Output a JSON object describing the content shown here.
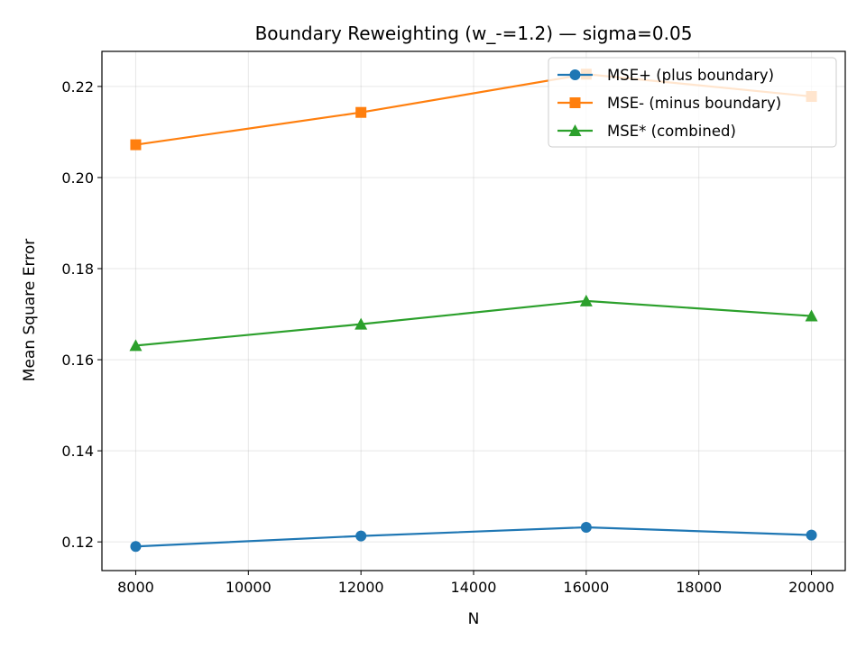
{
  "chart_data": {
    "type": "line",
    "title": "Boundary Reweighting (w_-=1.2) — sigma=0.05",
    "xlabel": "N",
    "ylabel": "Mean Square Error",
    "x": [
      8000,
      12000,
      16000,
      20000
    ],
    "xlim": [
      7400,
      20600
    ],
    "ylim": [
      0.1137,
      0.2277
    ],
    "xticks": [
      8000,
      10000,
      12000,
      14000,
      16000,
      18000,
      20000
    ],
    "xtick_labels": [
      "8000",
      "10000",
      "12000",
      "14000",
      "16000",
      "18000",
      "20000"
    ],
    "yticks": [
      0.12,
      0.14,
      0.16,
      0.18,
      0.2,
      0.22
    ],
    "ytick_labels": [
      "0.12",
      "0.14",
      "0.16",
      "0.18",
      "0.20",
      "0.22"
    ],
    "grid": true,
    "legend_position": "top-right",
    "series": [
      {
        "name": "MSE+ (plus boundary)",
        "values": [
          0.119,
          0.1213,
          0.1232,
          0.1215
        ],
        "color": "#1f77b4",
        "marker": "circle"
      },
      {
        "name": "MSE- (minus boundary)",
        "values": [
          0.2072,
          0.2143,
          0.2227,
          0.2178
        ],
        "color": "#ff7f0e",
        "marker": "square"
      },
      {
        "name": "MSE* (combined)",
        "values": [
          0.1631,
          0.1678,
          0.1729,
          0.1696
        ],
        "color": "#2ca02c",
        "marker": "triangle"
      }
    ]
  }
}
